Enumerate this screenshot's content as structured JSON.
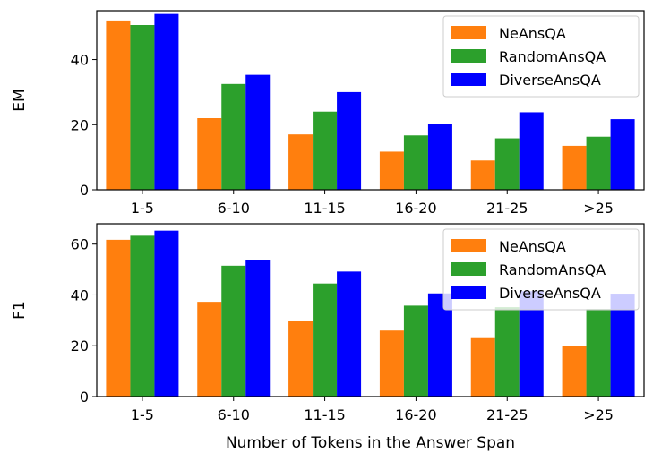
{
  "chart_data": [
    {
      "type": "bar",
      "ylabel": "EM",
      "xlabel": "",
      "ylim": [
        0,
        55
      ],
      "yticks": [
        0,
        20,
        40
      ],
      "categories": [
        "1-5",
        "6-10",
        "11-15",
        "16-20",
        "21-25",
        ">25"
      ],
      "series": [
        {
          "name": "NeAnsQA",
          "color": "#ff7f0e",
          "values": [
            52.0,
            22.0,
            17.0,
            11.7,
            9.0,
            13.5
          ]
        },
        {
          "name": "RandomAnsQA",
          "color": "#2ca02c",
          "values": [
            50.6,
            32.5,
            24.0,
            16.7,
            15.8,
            16.3
          ]
        },
        {
          "name": "DiverseAnsQA",
          "color": "#0000ff",
          "values": [
            54.0,
            35.3,
            30.0,
            20.2,
            23.8,
            21.7
          ]
        }
      ],
      "legend": "top-right"
    },
    {
      "type": "bar",
      "ylabel": "F1",
      "xlabel": "Number of Tokens in the Answer Span",
      "ylim": [
        0,
        68
      ],
      "yticks": [
        0,
        20,
        40,
        60
      ],
      "categories": [
        "1-5",
        "6-10",
        "11-15",
        "16-20",
        "21-25",
        ">25"
      ],
      "series": [
        {
          "name": "NeAnsQA",
          "color": "#ff7f0e",
          "values": [
            61.7,
            37.3,
            29.6,
            26.0,
            23.0,
            19.8
          ]
        },
        {
          "name": "RandomAnsQA",
          "color": "#2ca02c",
          "values": [
            63.3,
            51.5,
            44.5,
            35.8,
            35.2,
            34.5
          ]
        },
        {
          "name": "DiverseAnsQA",
          "color": "#0000ff",
          "values": [
            65.3,
            53.8,
            49.2,
            40.6,
            41.5,
            40.5
          ]
        }
      ],
      "legend": "top-right"
    }
  ]
}
